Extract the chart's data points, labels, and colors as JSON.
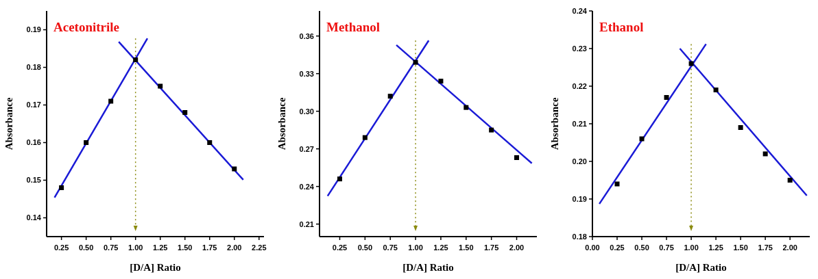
{
  "chart_data": [
    {
      "type": "scatter",
      "title": "Acetonitrile",
      "xlabel": "[D/A] Ratio",
      "ylabel": "Absorbance",
      "xlim": [
        0.1,
        2.3
      ],
      "ylim": [
        0.135,
        0.195
      ],
      "xticks": [
        {
          "value": 0.25,
          "label": "0.25"
        },
        {
          "value": 0.5,
          "label": "0.50"
        },
        {
          "value": 0.75,
          "label": "0.75"
        },
        {
          "value": 1,
          "label": "1.00"
        },
        {
          "value": 1.25,
          "label": "1.25"
        },
        {
          "value": 1.5,
          "label": "1.50"
        },
        {
          "value": 1.75,
          "label": "1.75"
        },
        {
          "value": 2,
          "label": "2.00"
        },
        {
          "value": 2.25,
          "label": "2.25"
        }
      ],
      "yticks": [
        {
          "value": 0.14,
          "label": "0.14"
        },
        {
          "value": 0.15,
          "label": "0.15"
        },
        {
          "value": 0.16,
          "label": "0.16"
        },
        {
          "value": 0.17,
          "label": "0.17"
        },
        {
          "value": 0.18,
          "label": "0.18"
        },
        {
          "value": 0.19,
          "label": "0.19"
        }
      ],
      "grid": false,
      "ref_lines": [
        {
          "axis": "x",
          "value": 1,
          "color": "#8b8b10",
          "line_style": "dotted"
        }
      ],
      "series": [
        {
          "type": "scatter",
          "color": "#000000",
          "marker": "square",
          "x": [
            0.25,
            0.5,
            0.75,
            1,
            1.25,
            1.5,
            1.75,
            2
          ],
          "values": [
            0.148,
            0.16,
            0.171,
            0.182,
            0.175,
            0.168,
            0.16,
            0.153
          ]
        },
        {
          "type": "line",
          "color": "#1a1ad6",
          "marker": "none",
          "line_style": "solid",
          "x": [
            0.18,
            1.12
          ],
          "values": [
            0.1454,
            0.1877
          ]
        },
        {
          "type": "line",
          "color": "#1a1ad6",
          "marker": "none",
          "line_style": "solid",
          "x": [
            0.83,
            2.09
          ],
          "values": [
            0.1868,
            0.1501
          ]
        }
      ]
    },
    {
      "type": "scatter",
      "title": "Methanol",
      "xlabel": "[D/A] Ratio",
      "ylabel": "Absorbance",
      "xlim": [
        0.05,
        2.2
      ],
      "ylim": [
        0.2,
        0.38
      ],
      "xticks": [
        {
          "value": 0.25,
          "label": "0.25"
        },
        {
          "value": 0.5,
          "label": "0.50"
        },
        {
          "value": 0.75,
          "label": "0.75"
        },
        {
          "value": 1,
          "label": "1.00"
        },
        {
          "value": 1.25,
          "label": "1.25"
        },
        {
          "value": 1.5,
          "label": "1.50"
        },
        {
          "value": 1.75,
          "label": "1.75"
        },
        {
          "value": 2,
          "label": "2.00"
        }
      ],
      "yticks": [
        {
          "value": 0.21,
          "label": "0.21"
        },
        {
          "value": 0.24,
          "label": "0.24"
        },
        {
          "value": 0.27,
          "label": "0.27"
        },
        {
          "value": 0.3,
          "label": "0.30"
        },
        {
          "value": 0.33,
          "label": "0.33"
        },
        {
          "value": 0.36,
          "label": "0.36"
        }
      ],
      "grid": false,
      "ref_lines": [
        {
          "axis": "x",
          "value": 1,
          "color": "#8b8b10",
          "line_style": "dotted"
        }
      ],
      "series": [
        {
          "type": "scatter",
          "color": "#000000",
          "marker": "square",
          "x": [
            0.25,
            0.5,
            0.75,
            1,
            1.25,
            1.5,
            1.75,
            2
          ],
          "values": [
            0.246,
            0.279,
            0.312,
            0.339,
            0.324,
            0.303,
            0.285,
            0.263
          ]
        },
        {
          "type": "line",
          "color": "#1a1ad6",
          "marker": "none",
          "line_style": "solid",
          "x": [
            0.13,
            1.13
          ],
          "values": [
            0.2324,
            0.3564
          ]
        },
        {
          "type": "line",
          "color": "#1a1ad6",
          "marker": "none",
          "line_style": "solid",
          "x": [
            0.81,
            2.15
          ],
          "values": [
            0.3528,
            0.2585
          ]
        }
      ]
    },
    {
      "type": "scatter",
      "title": "Ethanol",
      "xlabel": "[D/A] Ratio",
      "ylabel": "Absorbance",
      "xlim": [
        0,
        2.2
      ],
      "ylim": [
        0.18,
        0.24
      ],
      "xticks": [
        {
          "value": 0,
          "label": "0.00"
        },
        {
          "value": 0.25,
          "label": "0.25"
        },
        {
          "value": 0.5,
          "label": "0.50"
        },
        {
          "value": 0.75,
          "label": "0.75"
        },
        {
          "value": 1,
          "label": "1.00"
        },
        {
          "value": 1.25,
          "label": "1.25"
        },
        {
          "value": 1.5,
          "label": "1.50"
        },
        {
          "value": 1.75,
          "label": "1.75"
        },
        {
          "value": 2,
          "label": "2.00"
        }
      ],
      "yticks": [
        {
          "value": 0.18,
          "label": "0.18"
        },
        {
          "value": 0.19,
          "label": "0.19"
        },
        {
          "value": 0.2,
          "label": "0.20"
        },
        {
          "value": 0.21,
          "label": "0.21"
        },
        {
          "value": 0.22,
          "label": "0.22"
        },
        {
          "value": 0.23,
          "label": "0.23"
        },
        {
          "value": 0.24,
          "label": "0.24"
        }
      ],
      "grid": false,
      "ref_lines": [
        {
          "axis": "x",
          "value": 1,
          "color": "#8b8b10",
          "line_style": "dotted"
        }
      ],
      "series": [
        {
          "type": "scatter",
          "color": "#000000",
          "marker": "square",
          "x": [
            0.25,
            0.5,
            0.75,
            1,
            1.25,
            1.5,
            1.75,
            2
          ],
          "values": [
            0.194,
            0.206,
            0.217,
            0.226,
            0.219,
            0.209,
            0.202,
            0.195
          ]
        },
        {
          "type": "line",
          "color": "#1a1ad6",
          "marker": "none",
          "line_style": "solid",
          "x": [
            0.07,
            1.15
          ],
          "values": [
            0.1887,
            0.2312
          ]
        },
        {
          "type": "line",
          "color": "#1a1ad6",
          "marker": "none",
          "line_style": "solid",
          "x": [
            0.885,
            2.17
          ],
          "values": [
            0.23,
            0.1909
          ]
        }
      ]
    }
  ]
}
